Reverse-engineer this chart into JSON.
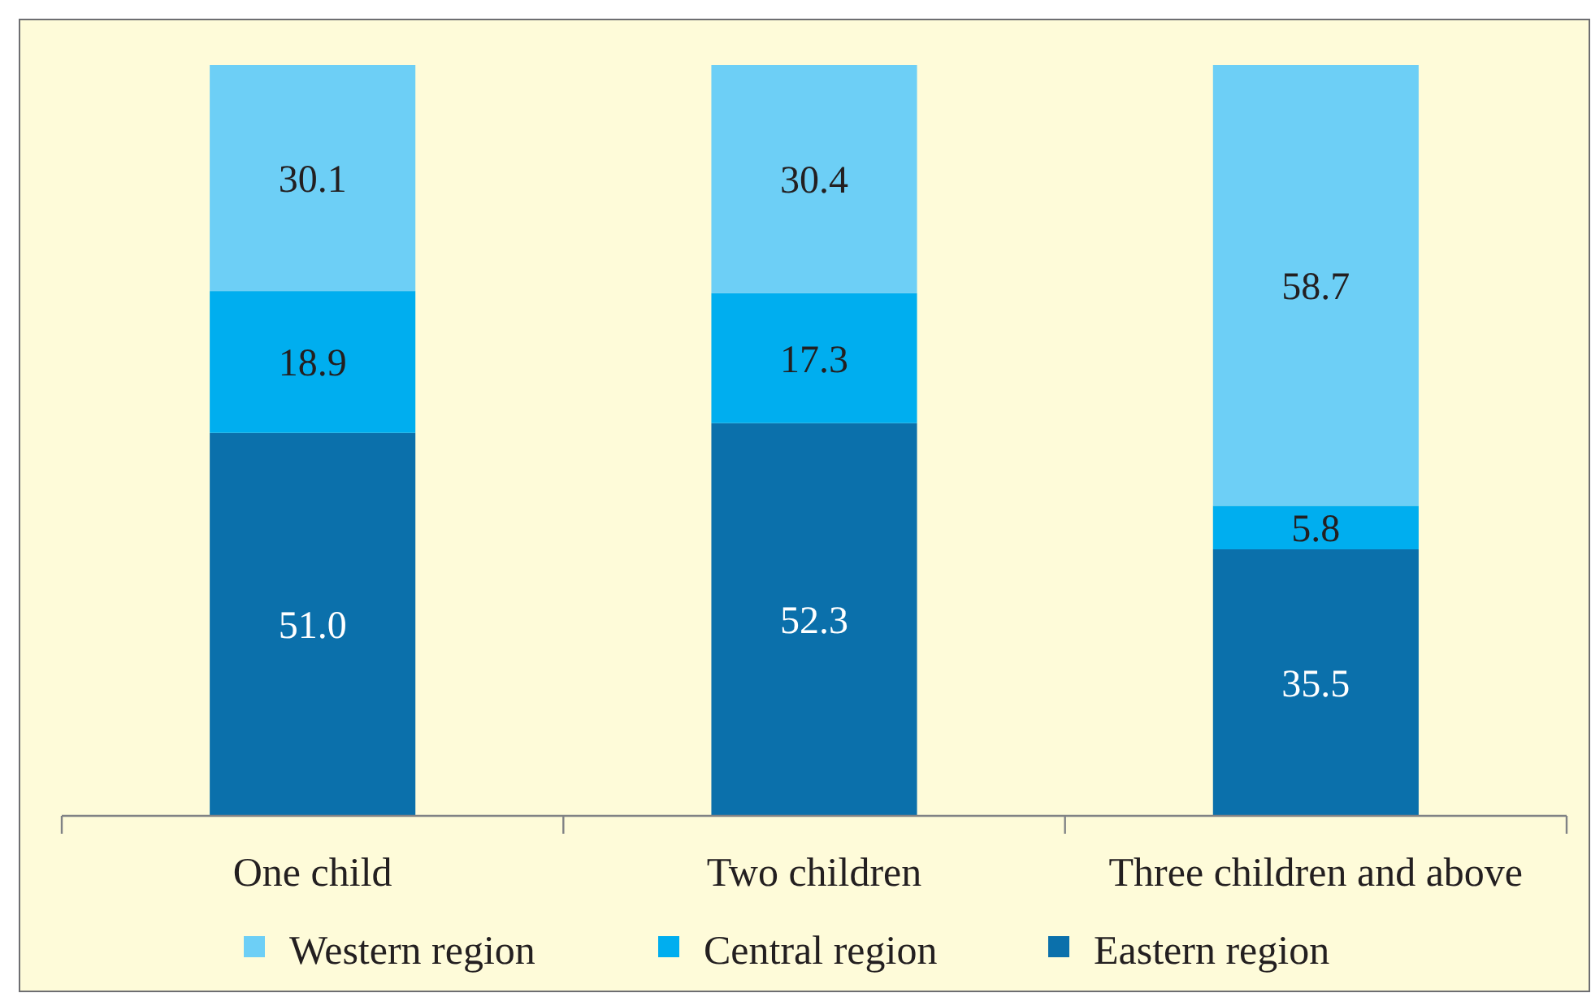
{
  "chart_data": {
    "type": "bar",
    "stacked": true,
    "legend": "bottom",
    "categories": [
      "One child",
      "Two children",
      "Three children and above"
    ],
    "series": [
      {
        "name": "Eastern region",
        "color": "#0b70ab",
        "values": [
          51.0,
          52.3,
          35.5
        ],
        "value_labels": [
          "51.0",
          "52.3",
          "35.5"
        ]
      },
      {
        "name": "Central region",
        "color": "#00aeef",
        "values": [
          18.9,
          17.3,
          5.8
        ],
        "value_labels": [
          "18.9",
          "17.3",
          "5.8"
        ]
      },
      {
        "name": "Western region",
        "color": "#6dcff6",
        "values": [
          30.1,
          30.4,
          58.7
        ],
        "value_labels": [
          "30.1",
          "30.4",
          "58.7"
        ]
      }
    ]
  }
}
